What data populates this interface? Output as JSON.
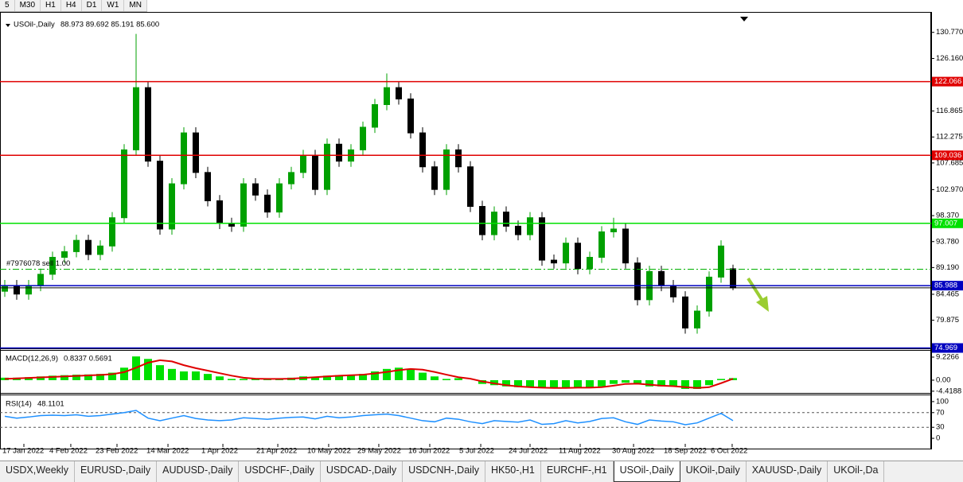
{
  "toolbar": {
    "timeframes": [
      "5",
      "M30",
      "H1",
      "H4",
      "D1",
      "W1",
      "MN"
    ]
  },
  "chart_data": [
    {
      "type": "candlestick",
      "title": "USOil-,Daily",
      "subtitle": "88.973 89.692 85.191 85.600",
      "bull_color": "#00a000",
      "bear_color": "#000000",
      "open": [
        85,
        86,
        84.5,
        86,
        88,
        91,
        92,
        94,
        91.5,
        93,
        98,
        110,
        121,
        108,
        96,
        104,
        113,
        106,
        101,
        97,
        96.5,
        104,
        102,
        99,
        104,
        106,
        109,
        103,
        111,
        108,
        110,
        114,
        118,
        121,
        119,
        113,
        107,
        103,
        110,
        107,
        100,
        95,
        99,
        96.5,
        95,
        98,
        90.5,
        90,
        93.5,
        89,
        91,
        95.5,
        96,
        90,
        83.5,
        88.5,
        86,
        84,
        78.5,
        81.5,
        87.5,
        88.973
      ],
      "high": [
        87,
        87,
        87,
        89,
        92,
        93,
        95,
        95,
        94,
        99,
        111,
        130.5,
        122,
        109,
        105,
        114,
        114,
        107,
        102,
        98,
        105,
        105,
        103,
        105,
        107,
        110,
        110,
        112,
        112,
        111,
        115,
        119,
        123.5,
        122,
        120,
        114,
        108,
        111,
        111,
        108,
        101,
        100,
        100,
        97.5,
        99,
        99,
        91.5,
        94.5,
        94.5,
        92,
        96.5,
        98,
        97,
        91,
        89.5,
        89.5,
        87,
        85,
        82.5,
        88.5,
        94,
        89.692
      ],
      "low": [
        84,
        83.5,
        83.5,
        85,
        87,
        90,
        91,
        90.5,
        90.5,
        92,
        97,
        109,
        107,
        95,
        95,
        103,
        105,
        100,
        96,
        95.5,
        95.5,
        101,
        98,
        98,
        103,
        105,
        102,
        102,
        107,
        107,
        109,
        113,
        117,
        118,
        112,
        106,
        102,
        102,
        106,
        99,
        94,
        94,
        95.5,
        94,
        94,
        89.5,
        89,
        89,
        88,
        88,
        90,
        94.5,
        89,
        82.5,
        82.5,
        85,
        83,
        77.5,
        77.5,
        80.5,
        86.5,
        85.191
      ],
      "close": [
        86,
        84.5,
        86,
        88,
        91,
        92,
        94,
        91.5,
        93,
        98,
        110,
        121,
        108,
        96,
        104,
        113,
        106,
        101,
        97,
        96.5,
        104,
        102,
        99,
        104,
        106,
        109,
        103,
        111,
        108,
        110,
        114,
        118,
        121,
        119,
        113,
        107,
        103,
        110,
        107,
        100,
        95,
        99,
        96.5,
        95,
        98,
        90.5,
        90,
        93.5,
        89,
        91,
        95.5,
        96,
        90,
        83.5,
        88.5,
        86,
        84,
        78.5,
        81.5,
        87.5,
        93,
        85.6
      ],
      "xlim": [
        -0.4,
        77.6
      ],
      "xticks": [
        {
          "value": 1.6,
          "label": "17 Jan 2022"
        },
        {
          "value": 5.53,
          "label": "4 Feb 2022"
        },
        {
          "value": 9.4,
          "label": "23 Feb 2022"
        },
        {
          "value": 13.67,
          "label": "14 Mar 2022"
        },
        {
          "value": 18.27,
          "label": "1 Apr 2022"
        },
        {
          "value": 22.87,
          "label": "21 Apr 2022"
        },
        {
          "value": 27.13,
          "label": "10 May 2022"
        },
        {
          "value": 31.33,
          "label": "29 May 2022"
        },
        {
          "value": 35.6,
          "label": "16 Jun 2022"
        },
        {
          "value": 39.87,
          "label": "5 Jul 2022"
        },
        {
          "value": 44,
          "label": "24 Jul 2022"
        },
        {
          "value": 48.2,
          "label": "11 Aug 2022"
        },
        {
          "value": 52.67,
          "label": "30 Aug 2022"
        },
        {
          "value": 57,
          "label": "18 Sep 2022"
        },
        {
          "value": 60.93,
          "label": "6 Oct 2022"
        }
      ],
      "ylim": [
        74.9,
        133.4
      ],
      "yticks": [
        {
          "value": 130.77,
          "label": "130.770"
        },
        {
          "value": 126.16,
          "label": "126.160"
        },
        116.865,
        112.275,
        107.685,
        {
          "value": 102.97,
          "label": "102.970"
        },
        {
          "value": 98.37,
          "label": "98.370"
        },
        {
          "value": 93.78,
          "label": "93.780"
        },
        {
          "value": 89.19,
          "label": "89.190"
        },
        84.465,
        79.875
      ],
      "levels": [
        {
          "value": 122.066,
          "color": "#e00000"
        },
        {
          "value": 109.036,
          "color": "#e00000"
        },
        {
          "value": 97.007,
          "color": "#00e000"
        },
        {
          "value": 85.988,
          "color": "#0000c0"
        },
        {
          "value": 74.969,
          "color": "#0000c0"
        }
      ],
      "order": {
        "label": "#7976078 sell 1.00",
        "price": 88.9
      }
    },
    {
      "type": "macd",
      "title": "MACD(12,26,9)",
      "subtitle": "0.8337 0.5691",
      "series": [
        {
          "color": "#00e000",
          "values": [
            1,
            1,
            1.2,
            1.5,
            1.8,
            2,
            2.2,
            2.3,
            2.5,
            3,
            5,
            9.5,
            8.5,
            6,
            4.5,
            3.5,
            3.5,
            2.5,
            1.5,
            0.5,
            0.5,
            0.8,
            0.5,
            0.5,
            1,
            1.5,
            1.2,
            1.8,
            2,
            2,
            2.5,
            3.5,
            4.5,
            5,
            4.5,
            3,
            1.5,
            0.5,
            0.8,
            0,
            -1.5,
            -2,
            -2.5,
            -2.8,
            -3,
            -3,
            -3.2,
            -3,
            -3,
            -3,
            -2.5,
            -1.5,
            -1,
            -1.5,
            -2.5,
            -2.5,
            -2.5,
            -3.5,
            -3.5,
            -2,
            0.5,
            0.8337
          ]
        },
        {
          "color": "#e00000",
          "values": [
            0.5,
            0.7,
            0.9,
            1.1,
            1.3,
            1.5,
            1.7,
            1.9,
            2.1,
            2.4,
            3.2,
            5,
            7,
            8,
            7.5,
            6,
            4.8,
            3.8,
            2.8,
            1.8,
            1,
            0.6,
            0.5,
            0.5,
            0.6,
            0.9,
            1.2,
            1.5,
            1.8,
            2,
            2.2,
            2.7,
            3.3,
            4,
            4.5,
            4.2,
            3.3,
            2.2,
            1.2,
            0.6,
            -0.5,
            -1.3,
            -2,
            -2.5,
            -2.8,
            -3,
            -3.1,
            -3.1,
            -3,
            -3,
            -2.8,
            -2.2,
            -1.5,
            -1.4,
            -1.8,
            -2.2,
            -2.4,
            -2.8,
            -3.1,
            -2.8,
            -1.2,
            0.5691
          ]
        }
      ],
      "ylim": [
        -5.1,
        11.45
      ],
      "yticks": [
        9.2266,
        {
          "value": 0,
          "label": "0.00"
        },
        -4.4188
      ]
    },
    {
      "type": "line",
      "title": "RSI(14)",
      "subtitle": "48.1101",
      "color": "#1e90ff",
      "values": [
        60,
        55,
        58,
        62,
        63,
        62,
        64,
        60,
        62,
        66,
        70,
        76,
        55,
        48,
        55,
        62,
        54,
        50,
        48,
        50,
        56,
        54,
        52,
        55,
        57,
        58,
        53,
        60,
        56,
        58,
        62,
        64,
        66,
        62,
        55,
        48,
        45,
        55,
        52,
        45,
        40,
        48,
        46,
        44,
        50,
        38,
        40,
        48,
        42,
        46,
        54,
        56,
        45,
        38,
        50,
        47,
        45,
        37,
        42,
        55,
        68,
        48.1101
      ],
      "ylim": [
        -15,
        115
      ],
      "yticks": [
        100,
        70,
        30,
        0
      ],
      "levels": [
        70,
        30
      ]
    }
  ],
  "tabs": [
    "USDX,Weekly",
    "EURUSD-,Daily",
    "AUDUSD-,Daily",
    "USDCHF-,Daily",
    "USDCAD-,Daily",
    "USDCNH-,Daily",
    "HK50-,H1",
    "EURCHF-,H1",
    "USOil-,Daily",
    "UKOil-,Daily",
    "XAUUSD-,Daily",
    "UKOil-,Da"
  ],
  "active_tab": 8
}
